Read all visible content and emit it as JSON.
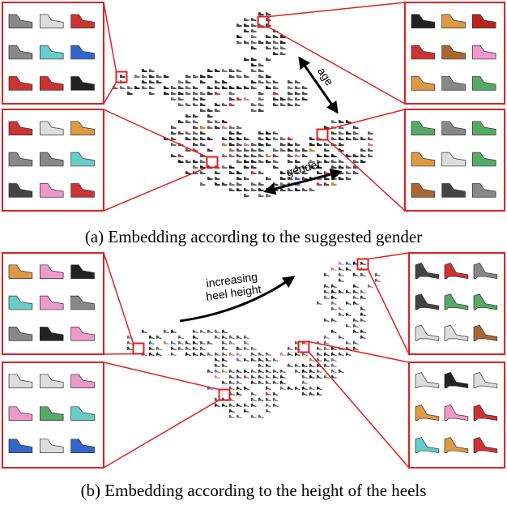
{
  "panels": [
    {
      "caption": "(a) Embedding according to the suggested gender",
      "annotations": [
        "age",
        "gender"
      ]
    },
    {
      "caption": "(b) Embedding according to the height of the heels",
      "annotations": [
        "increasing",
        "heel height"
      ]
    }
  ]
}
